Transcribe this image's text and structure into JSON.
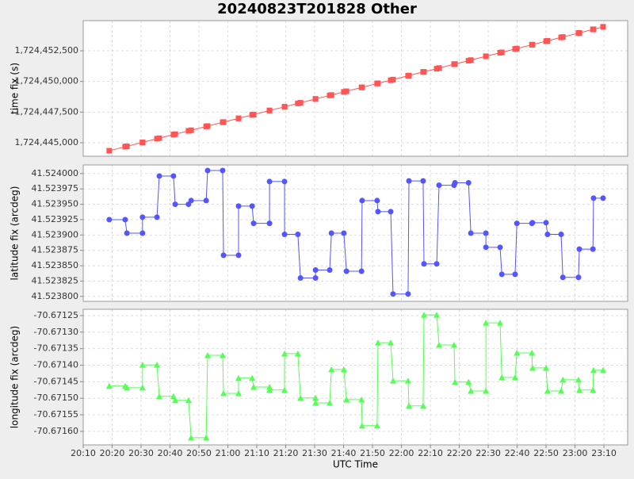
{
  "chart_data": [
    {
      "type": "line",
      "title": "20240823T201828 Other",
      "ylabel": "time fix (s)",
      "grid": true,
      "x": [
        1219.0,
        1224.5,
        1225.1,
        1230.5,
        1230.5,
        1235.5,
        1236.3,
        1241.2,
        1241.8,
        1246.4,
        1247.3,
        1252.5,
        1253.0,
        1258.2,
        1258.5,
        1263.7,
        1263.7,
        1268.4,
        1268.9,
        1274.4,
        1274.4,
        1279.6,
        1279.6,
        1284.2,
        1285.1,
        1290.3,
        1290.3,
        1295.2,
        1295.8,
        1300.1,
        1301.0,
        1306.2,
        1306.4,
        1311.6,
        1311.9,
        1316.3,
        1317.1,
        1322.3,
        1322.6,
        1327.5,
        1327.8,
        1332.2,
        1333.0,
        1338.2,
        1338.5,
        1343.2,
        1344.0,
        1349.2,
        1349.2,
        1354.1,
        1354.7,
        1359.3,
        1359.9,
        1365.1,
        1365.3,
        1370.0,
        1370.5,
        1375.2,
        1375.8,
        1381.2,
        1381.5,
        1386.2,
        1386.4,
        1389.7
      ],
      "xlim": [
        1210,
        1398.2
      ],
      "ylim": [
        1724443901,
        1724454958
      ],
      "yticks": [
        {
          "value": 1724445000,
          "label": "1,724,445,000"
        },
        {
          "value": 1724447500,
          "label": "1,724,447,500"
        },
        {
          "value": 1724450000,
          "label": "1,724,450,000"
        },
        {
          "value": 1724452500,
          "label": "1,724,452,500"
        }
      ],
      "series": [
        {
          "color": "#ff5555",
          "marker": "square",
          "values": [
            1724444350,
            1724444680,
            1724444710,
            1724445030,
            1724445030,
            1724445330,
            1724445370,
            1724445670,
            1724445700,
            1724445970,
            1724446020,
            1724446330,
            1724446360,
            1724446670,
            1724446690,
            1724446990,
            1724446990,
            1724447270,
            1724447300,
            1724447630,
            1724447630,
            1724447930,
            1724447930,
            1724448210,
            1724448260,
            1724448570,
            1724448570,
            1724448860,
            1724448890,
            1724449150,
            1724449200,
            1724449510,
            1724449520,
            1724449830,
            1724449850,
            1724450100,
            1724450150,
            1724450460,
            1724450480,
            1724450770,
            1724450780,
            1724451040,
            1724451090,
            1724451400,
            1724451420,
            1724451690,
            1724451740,
            1724452050,
            1724452050,
            1724452340,
            1724452370,
            1724452650,
            1724452680,
            1724452990,
            1724453000,
            1724453280,
            1724453310,
            1724453590,
            1724453620,
            1724453940,
            1724453960,
            1724454240,
            1724454250,
            1724454450
          ]
        }
      ]
    },
    {
      "type": "line",
      "ylabel": "latitude fix (arcdeg)",
      "grid": true,
      "x": [
        1219.0,
        1224.5,
        1225.1,
        1230.5,
        1230.5,
        1235.5,
        1236.3,
        1241.2,
        1241.8,
        1246.4,
        1247.3,
        1252.5,
        1253.0,
        1258.2,
        1258.5,
        1263.7,
        1263.7,
        1268.4,
        1268.9,
        1274.4,
        1274.4,
        1279.6,
        1279.6,
        1284.2,
        1285.1,
        1290.3,
        1290.3,
        1295.2,
        1295.8,
        1300.1,
        1301.0,
        1306.2,
        1306.4,
        1311.6,
        1311.9,
        1316.3,
        1317.1,
        1322.3,
        1322.6,
        1327.5,
        1327.8,
        1332.2,
        1333.0,
        1338.2,
        1338.5,
        1343.2,
        1344.0,
        1349.2,
        1349.2,
        1354.1,
        1354.7,
        1359.3,
        1359.9,
        1365.1,
        1365.3,
        1370.0,
        1370.5,
        1375.2,
        1375.8,
        1381.2,
        1381.5,
        1386.2,
        1386.4,
        1389.7
      ],
      "xlim": [
        1210,
        1398.2
      ],
      "ylim": [
        41.523792,
        41.524014
      ],
      "yticks": [
        {
          "value": 41.5238,
          "label": "41.523800"
        },
        {
          "value": 41.523825,
          "label": "41.523825"
        },
        {
          "value": 41.52385,
          "label": "41.523850"
        },
        {
          "value": 41.523875,
          "label": "41.523875"
        },
        {
          "value": 41.5239,
          "label": "41.523900"
        },
        {
          "value": 41.523925,
          "label": "41.523925"
        },
        {
          "value": 41.52395,
          "label": "41.523950"
        },
        {
          "value": 41.523975,
          "label": "41.523975"
        },
        {
          "value": 41.524,
          "label": "41.524000"
        }
      ],
      "series": [
        {
          "color": "#5555ff",
          "marker": "circle",
          "values": [
            41.523925,
            41.523925,
            41.523903,
            41.523903,
            41.523929,
            41.523929,
            41.523996,
            41.523996,
            41.52395,
            41.52395,
            41.523956,
            41.523956,
            41.524005,
            41.524005,
            41.523867,
            41.523867,
            41.523947,
            41.523947,
            41.523919,
            41.523919,
            41.523987,
            41.523987,
            41.523901,
            41.523901,
            41.52383,
            41.52383,
            41.523843,
            41.523843,
            41.523903,
            41.523903,
            41.523841,
            41.523841,
            41.523956,
            41.523956,
            41.523938,
            41.523938,
            41.523804,
            41.523804,
            41.523988,
            41.523988,
            41.523853,
            41.523853,
            41.523981,
            41.523981,
            41.523985,
            41.523985,
            41.523903,
            41.523903,
            41.52388,
            41.52388,
            41.523836,
            41.523836,
            41.523919,
            41.523919,
            41.52392,
            41.52392,
            41.523901,
            41.523901,
            41.523831,
            41.523831,
            41.523877,
            41.523877,
            41.52396,
            41.52396
          ]
        }
      ]
    },
    {
      "type": "line",
      "ylabel": "longitude fix (arcdeg)",
      "xlabel": "UTC Time",
      "grid": true,
      "x": [
        1219.0,
        1224.5,
        1225.1,
        1230.5,
        1230.5,
        1235.5,
        1236.3,
        1241.2,
        1241.8,
        1246.4,
        1247.3,
        1252.5,
        1253.0,
        1258.2,
        1258.5,
        1263.7,
        1263.7,
        1268.4,
        1268.9,
        1274.4,
        1274.4,
        1279.6,
        1279.6,
        1284.2,
        1285.1,
        1290.3,
        1290.3,
        1295.2,
        1295.8,
        1300.1,
        1301.0,
        1306.2,
        1306.4,
        1311.6,
        1311.9,
        1316.3,
        1317.1,
        1322.3,
        1322.6,
        1327.5,
        1327.8,
        1332.2,
        1333.0,
        1338.2,
        1338.5,
        1343.2,
        1344.0,
        1349.2,
        1349.2,
        1354.1,
        1354.7,
        1359.3,
        1359.9,
        1365.1,
        1365.3,
        1370.0,
        1370.5,
        1375.2,
        1375.8,
        1381.2,
        1381.5,
        1386.2,
        1386.4,
        1389.7
      ],
      "xlim": [
        1210,
        1398.2
      ],
      "xticks": [
        {
          "value": 1210,
          "label": "20:10"
        },
        {
          "value": 1220,
          "label": "20:20"
        },
        {
          "value": 1230,
          "label": "20:30"
        },
        {
          "value": 1240,
          "label": "20:40"
        },
        {
          "value": 1250,
          "label": "20:50"
        },
        {
          "value": 1260,
          "label": "21:00"
        },
        {
          "value": 1270,
          "label": "21:10"
        },
        {
          "value": 1280,
          "label": "21:20"
        },
        {
          "value": 1290,
          "label": "21:30"
        },
        {
          "value": 1300,
          "label": "21:40"
        },
        {
          "value": 1310,
          "label": "21:50"
        },
        {
          "value": 1320,
          "label": "22:00"
        },
        {
          "value": 1330,
          "label": "22:10"
        },
        {
          "value": 1340,
          "label": "22:20"
        },
        {
          "value": 1350,
          "label": "22:30"
        },
        {
          "value": 1360,
          "label": "22:40"
        },
        {
          "value": 1370,
          "label": "22:50"
        },
        {
          "value": 1380,
          "label": "23:00"
        },
        {
          "value": 1390,
          "label": "23:10"
        }
      ],
      "ylim": [
        -70.671641,
        -70.671231
      ],
      "yticks": [
        {
          "value": -70.6716,
          "label": "-70.67160"
        },
        {
          "value": -70.67155,
          "label": "-70.67155"
        },
        {
          "value": -70.6715,
          "label": "-70.67150"
        },
        {
          "value": -70.67145,
          "label": "-70.67145"
        },
        {
          "value": -70.6714,
          "label": "-70.67140"
        },
        {
          "value": -70.67135,
          "label": "-70.67135"
        },
        {
          "value": -70.6713,
          "label": "-70.67130"
        },
        {
          "value": -70.67125,
          "label": "-70.67125"
        }
      ],
      "series": [
        {
          "color": "#55ff55",
          "marker": "triangle",
          "values": [
            -70.671463,
            -70.671463,
            -70.671468,
            -70.671468,
            -70.671399,
            -70.671399,
            -70.671494,
            -70.671494,
            -70.671506,
            -70.671506,
            -70.671619,
            -70.671619,
            -70.67137,
            -70.67137,
            -70.671485,
            -70.671485,
            -70.671439,
            -70.671439,
            -70.671466,
            -70.671466,
            -70.671475,
            -70.671475,
            -70.671365,
            -70.671365,
            -70.671499,
            -70.671499,
            -70.671514,
            -70.671514,
            -70.671413,
            -70.671413,
            -70.671504,
            -70.671504,
            -70.671583,
            -70.671583,
            -70.671332,
            -70.671332,
            -70.671447,
            -70.671447,
            -70.671523,
            -70.671523,
            -70.671248,
            -70.671248,
            -70.671339,
            -70.671339,
            -70.671451,
            -70.671451,
            -70.671478,
            -70.671478,
            -70.671272,
            -70.671272,
            -70.671437,
            -70.671437,
            -70.671363,
            -70.671363,
            -70.671408,
            -70.671408,
            -70.671478,
            -70.671478,
            -70.671444,
            -70.671444,
            -70.671475,
            -70.671475,
            -70.671415,
            -70.671415
          ]
        }
      ]
    }
  ]
}
